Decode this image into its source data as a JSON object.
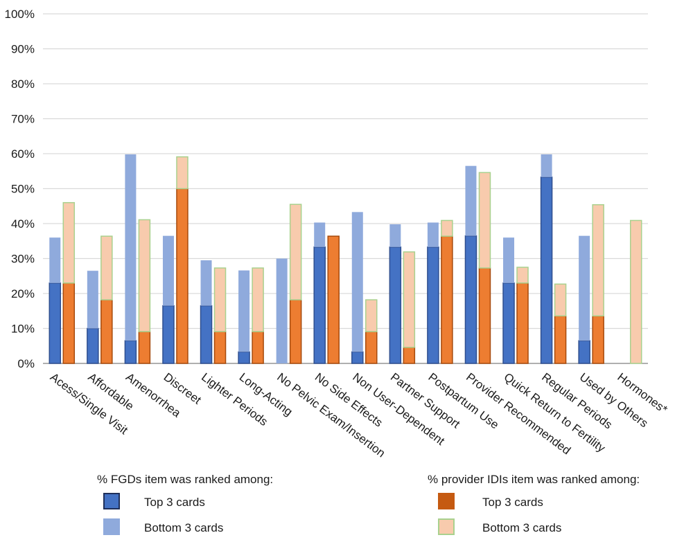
{
  "chart_data": {
    "type": "bar",
    "stacked": true,
    "categories": [
      "Acess/Single Visit",
      "Affordable",
      "Amenorrhea",
      "Discreet",
      "Lighter Periods",
      "Long-Acting",
      "No Pelvic Exam/Insertion",
      "No Side Effects",
      "Non User-Dependent",
      "Partner Support",
      "Postpartum Use",
      "Provider Recommended",
      "Quick Return to Fertility",
      "Regular Periods",
      "Used by Others",
      "Hormones*"
    ],
    "groups": [
      {
        "title": "% FGDs item was ranked among:",
        "series": [
          {
            "name": "Top 3 cards",
            "color": "#4472c4",
            "values": [
              23,
              10,
              6.5,
              16.5,
              16.5,
              3.3,
              0,
              33.3,
              3.3,
              33.3,
              33.3,
              36.5,
              23,
              53.3,
              6.5,
              0
            ]
          },
          {
            "name": "Bottom 3 cards",
            "color": "#8faadc",
            "values": [
              13,
              16.5,
              53.3,
              20,
              13,
              23.3,
              30,
              7,
              40,
              6.5,
              7,
              20,
              13,
              6.5,
              30,
              0
            ]
          }
        ]
      },
      {
        "title": "% provider IDIs item was ranked among:",
        "series": [
          {
            "name": "Top 3 cards",
            "color": "#ed7d31",
            "values": [
              23,
              18.2,
              9.1,
              50,
              9.1,
              9.1,
              18.2,
              36.4,
              9.1,
              4.6,
              36.4,
              27.3,
              23,
              13.6,
              13.6,
              0
            ]
          },
          {
            "name": "Bottom 3 cards",
            "color": "#f8cbad",
            "values": [
              23,
              18.2,
              32,
              9.1,
              18.2,
              18.2,
              27.3,
              0,
              9.1,
              27.3,
              4.5,
              27.3,
              4.5,
              9.1,
              31.8,
              40.9
            ]
          }
        ]
      }
    ],
    "yticks": [
      "0%",
      "10%",
      "20%",
      "30%",
      "40%",
      "50%",
      "60%",
      "70%",
      "80%",
      "90%",
      "100%"
    ],
    "ylim": [
      0,
      100
    ],
    "grid": true,
    "legend_position": "bottom"
  }
}
